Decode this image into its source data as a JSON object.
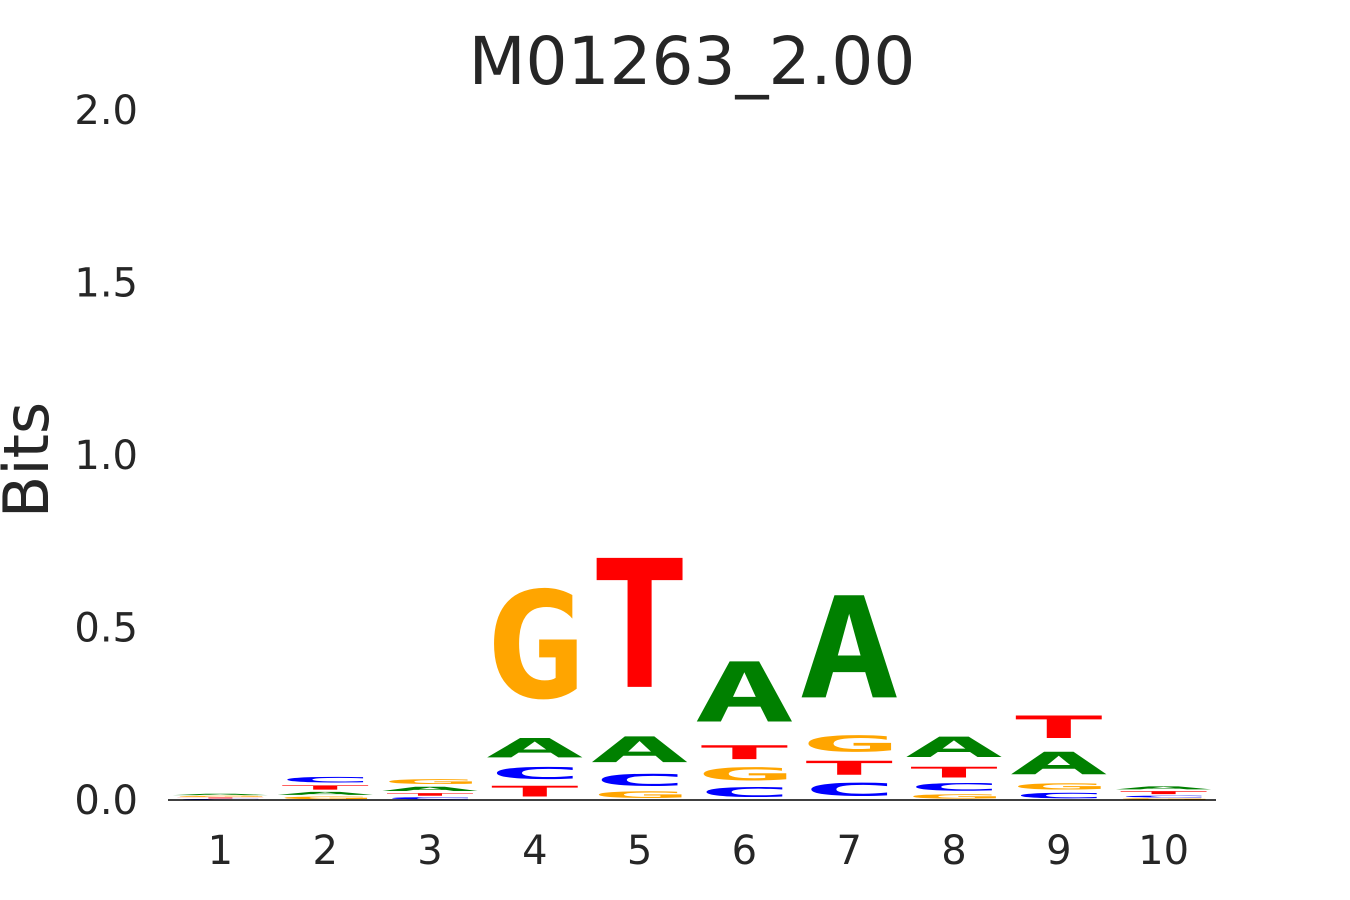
{
  "chart_data": {
    "type": "sequence-logo",
    "title": "M01263_2.00",
    "ylabel": "Bits",
    "xlabel": "",
    "ylim": [
      0,
      2.0
    ],
    "yticks": [
      "0.0",
      "0.5",
      "1.0",
      "1.5",
      "2.0"
    ],
    "grid": false,
    "colors": {
      "A": "#008000",
      "C": "#0000ff",
      "G": "#ffa500",
      "T": "#ff0000"
    },
    "positions": [
      {
        "label": "1",
        "stack": [
          {
            "base": "C",
            "bits": 0.004
          },
          {
            "base": "T",
            "bits": 0.004
          },
          {
            "base": "G",
            "bits": 0.005
          },
          {
            "base": "A",
            "bits": 0.006
          }
        ]
      },
      {
        "label": "2",
        "stack": [
          {
            "base": "G",
            "bits": 0.012
          },
          {
            "base": "A",
            "bits": 0.014
          },
          {
            "base": "T",
            "bits": 0.02
          },
          {
            "base": "C",
            "bits": 0.025
          }
        ]
      },
      {
        "label": "3",
        "stack": [
          {
            "base": "C",
            "bits": 0.01
          },
          {
            "base": "T",
            "bits": 0.012
          },
          {
            "base": "A",
            "bits": 0.02
          },
          {
            "base": "G",
            "bits": 0.022
          }
        ]
      },
      {
        "label": "4",
        "stack": [
          {
            "base": "T",
            "bits": 0.05
          },
          {
            "base": "C",
            "bits": 0.055
          },
          {
            "base": "A",
            "bits": 0.09
          },
          {
            "base": "G",
            "bits": 0.5
          }
        ]
      },
      {
        "label": "5",
        "stack": [
          {
            "base": "G",
            "bits": 0.03
          },
          {
            "base": "C",
            "bits": 0.055
          },
          {
            "base": "A",
            "bits": 0.12
          },
          {
            "base": "T",
            "bits": 0.6
          }
        ]
      },
      {
        "label": "6",
        "stack": [
          {
            "base": "C",
            "bits": 0.045
          },
          {
            "base": "G",
            "bits": 0.06
          },
          {
            "base": "T",
            "bits": 0.065
          },
          {
            "base": "A",
            "bits": 0.28
          }
        ]
      },
      {
        "label": "7",
        "stack": [
          {
            "base": "C",
            "bits": 0.06
          },
          {
            "base": "T",
            "bits": 0.065
          },
          {
            "base": "G",
            "bits": 0.075
          },
          {
            "base": "A",
            "bits": 0.475
          }
        ]
      },
      {
        "label": "8",
        "stack": [
          {
            "base": "G",
            "bits": 0.02
          },
          {
            "base": "C",
            "bits": 0.035
          },
          {
            "base": "T",
            "bits": 0.05
          },
          {
            "base": "A",
            "bits": 0.095
          }
        ]
      },
      {
        "label": "9",
        "stack": [
          {
            "base": "C",
            "bits": 0.025
          },
          {
            "base": "G",
            "bits": 0.028
          },
          {
            "base": "A",
            "bits": 0.105
          },
          {
            "base": "T",
            "bits": 0.105
          }
        ]
      },
      {
        "label": "10",
        "stack": [
          {
            "base": "G",
            "bits": 0.006
          },
          {
            "base": "C",
            "bits": 0.008
          },
          {
            "base": "T",
            "bits": 0.014
          },
          {
            "base": "A",
            "bits": 0.014
          }
        ]
      }
    ]
  }
}
